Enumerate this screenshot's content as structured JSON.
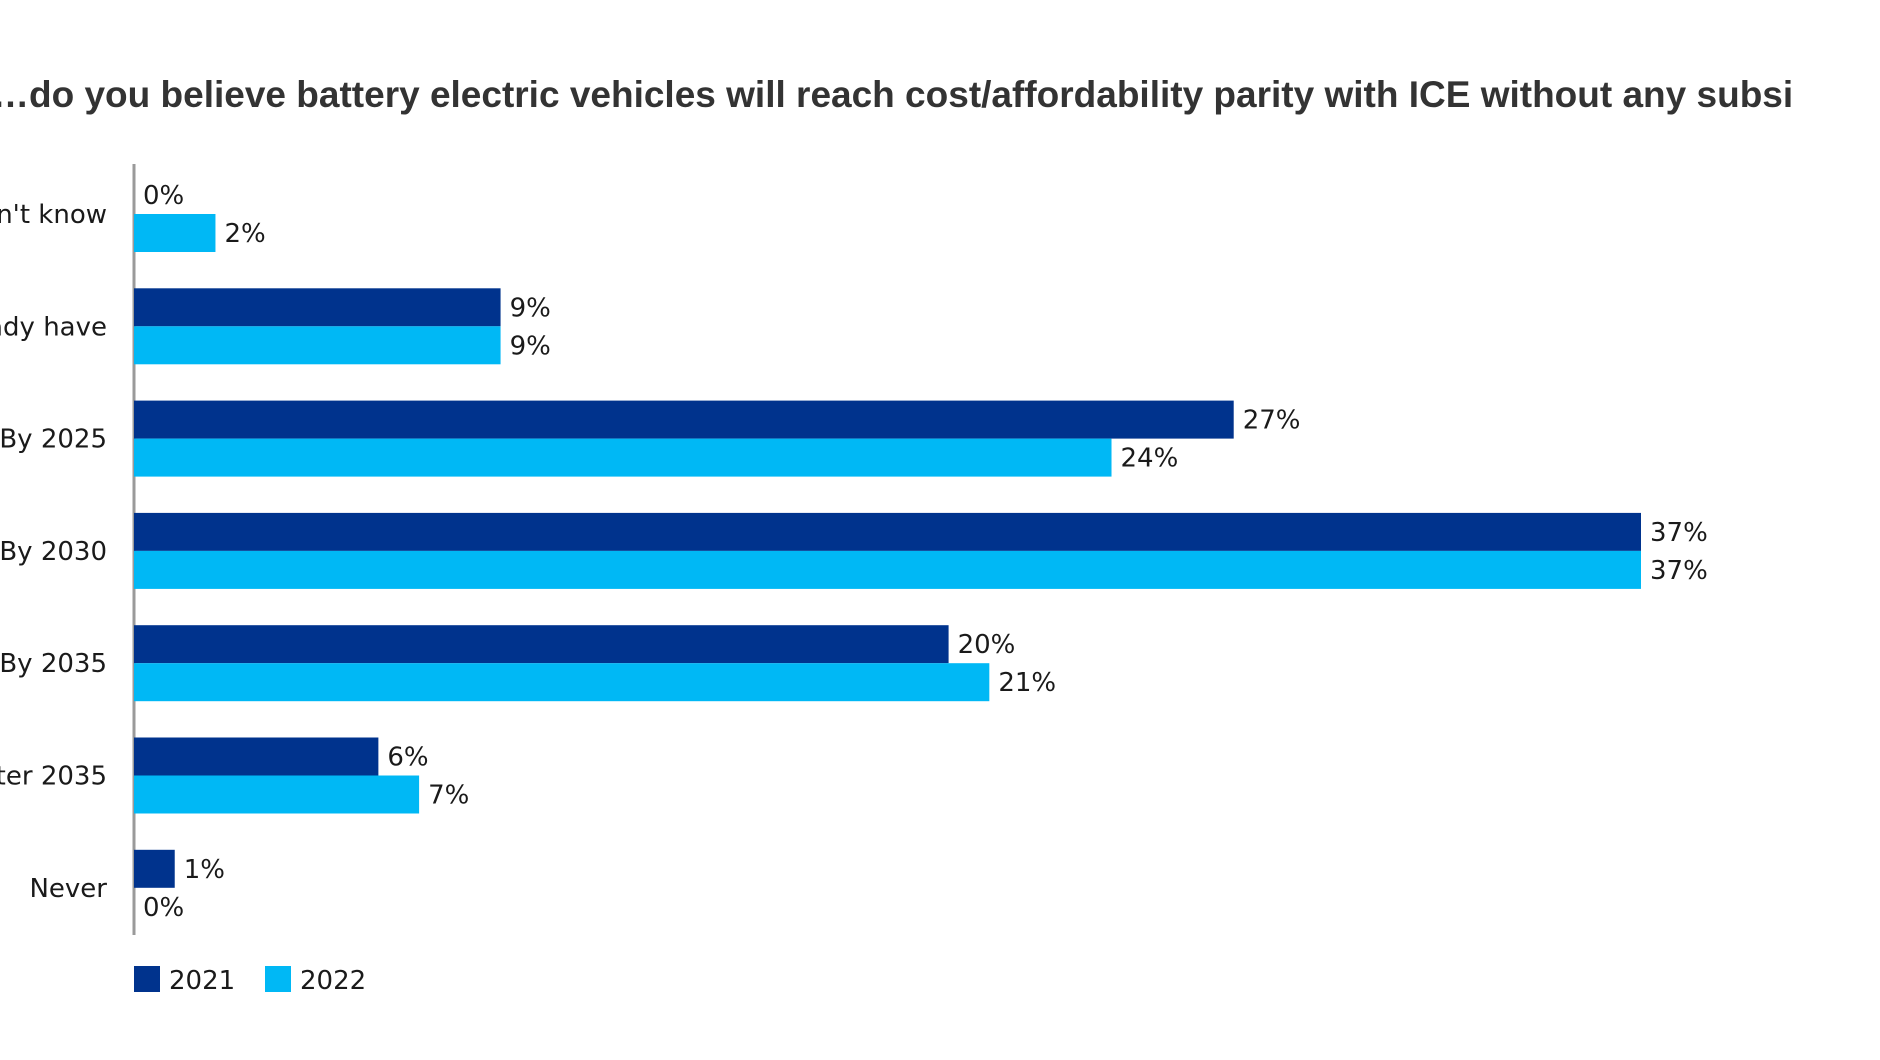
{
  "chart_data": {
    "type": "bar",
    "orientation": "horizontal",
    "title": "…do you believe battery electric vehicles will reach cost/affordability parity with ICE without any subsi",
    "categories": [
      "n't know",
      "ady have",
      "By 2025",
      "By 2030",
      "By 2035",
      "fter 2035",
      "Never"
    ],
    "series": [
      {
        "name": "2021",
        "color": "#00338D",
        "values": [
          0,
          9,
          27,
          37,
          20,
          6,
          1
        ],
        "labels": [
          "0%",
          "9%",
          "27%",
          "37%",
          "20%",
          "6%",
          "1%"
        ]
      },
      {
        "name": "2022",
        "color": "#00B8F5",
        "values": [
          2,
          9,
          24,
          37,
          21,
          7,
          0
        ],
        "labels": [
          "2%",
          "9%",
          "24%",
          "37%",
          "21%",
          "7%",
          "0%"
        ]
      }
    ],
    "value_unit": "%",
    "xlim": [
      0,
      37
    ],
    "grid": false,
    "legend_position": "bottom-left"
  }
}
